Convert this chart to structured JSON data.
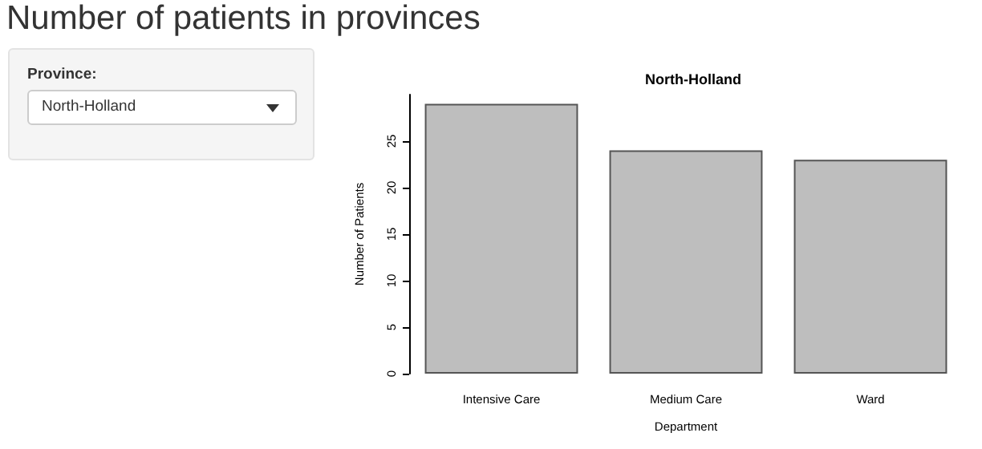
{
  "chart_data": {
    "type": "bar",
    "title": "Number of patients in provinces",
    "subtitle": "North-Holland",
    "xlabel": "Department",
    "ylabel": "Number of Patients",
    "categories": [
      "Intensive Care",
      "Medium Care",
      "Ward"
    ],
    "values": [
      29,
      24,
      23
    ],
    "color": "#bebebe",
    "ylim": [
      0,
      30
    ],
    "yticks": [
      0,
      5,
      10,
      15,
      20,
      25
    ],
    "grid": false,
    "annotations": [
      "Province:",
      "North-Holland"
    ]
  }
}
